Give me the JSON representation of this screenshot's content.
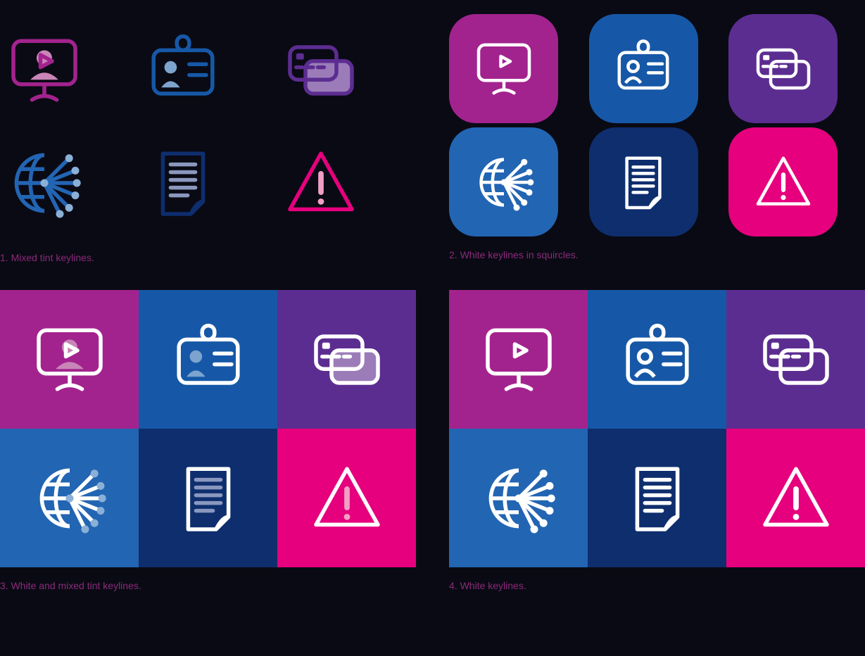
{
  "captions": {
    "p1": "1. Mixed tint keylines.",
    "p2": "2. White keylines in squircles.",
    "p3": "3. White and mixed tint keylines.",
    "p4": "4. White keylines."
  },
  "colors": {
    "bg": "#0a0a14",
    "white": "#ffffff",
    "magenta": "#a3238e",
    "magenta_tint": "#c985b8",
    "pink": "#e6007e",
    "pink_tint": "#f29ec4",
    "purple": "#5c2d91",
    "purple_tint": "#9b7cb8",
    "blue": "#1658a7",
    "blue_tint": "#7da4ce",
    "navy": "#0e2e6e",
    "navy_tint": "#8a98bf",
    "midblue": "#2265b3",
    "midblue_tint": "#8ab0d7"
  },
  "icons": [
    "webinar",
    "id-badge",
    "credit-cards",
    "globe-network",
    "document",
    "warning"
  ],
  "panel1": [
    {
      "icon": "webinar",
      "stroke": "#a3238e",
      "fill": "#c985b8"
    },
    {
      "icon": "id-badge",
      "stroke": "#1658a7",
      "fill": "#7da4ce"
    },
    {
      "icon": "credit-cards",
      "stroke": "#5c2d91",
      "fill": "#9b7cb8"
    },
    {
      "icon": "globe-network",
      "stroke": "#2265b3",
      "fill": "#8ab0d7"
    },
    {
      "icon": "document",
      "stroke": "#0e2e6e",
      "fill": "#8a98bf"
    },
    {
      "icon": "warning",
      "stroke": "#e6007e",
      "fill": "#f29ec4"
    }
  ],
  "panel2": [
    {
      "icon": "webinar",
      "bg": "#a3238e"
    },
    {
      "icon": "id-badge",
      "bg": "#1658a7"
    },
    {
      "icon": "credit-cards",
      "bg": "#5c2d91"
    },
    {
      "icon": "globe-network",
      "bg": "#2265b3"
    },
    {
      "icon": "document",
      "bg": "#0e2e6e"
    },
    {
      "icon": "warning",
      "bg": "#e6007e"
    }
  ],
  "panel3": [
    {
      "icon": "webinar",
      "bg": "#a3238e",
      "stroke": "#ffffff",
      "fill": "#c985b8"
    },
    {
      "icon": "id-badge",
      "bg": "#1658a7",
      "stroke": "#ffffff",
      "fill": "#7da4ce"
    },
    {
      "icon": "credit-cards",
      "bg": "#5c2d91",
      "stroke": "#ffffff",
      "fill": "#9b7cb8"
    },
    {
      "icon": "globe-network",
      "bg": "#2265b3",
      "stroke": "#ffffff",
      "fill": "#8ab0d7"
    },
    {
      "icon": "document",
      "bg": "#0e2e6e",
      "stroke": "#ffffff",
      "fill": "#8a98bf"
    },
    {
      "icon": "warning",
      "bg": "#e6007e",
      "stroke": "#ffffff",
      "fill": "#f29ec4"
    }
  ],
  "panel4": [
    {
      "icon": "webinar",
      "bg": "#a3238e"
    },
    {
      "icon": "id-badge",
      "bg": "#1658a7"
    },
    {
      "icon": "credit-cards",
      "bg": "#5c2d91"
    },
    {
      "icon": "globe-network",
      "bg": "#2265b3"
    },
    {
      "icon": "document",
      "bg": "#0e2e6e"
    },
    {
      "icon": "warning",
      "bg": "#e6007e"
    }
  ],
  "style": {
    "stroke_width": 5,
    "icon_size_loose": 110,
    "icon_size_squircle": 90,
    "icon_size_tile": 110,
    "squircle_radius": 38,
    "caption_color": "#8a2a7a",
    "caption_fontsize": 14
  }
}
